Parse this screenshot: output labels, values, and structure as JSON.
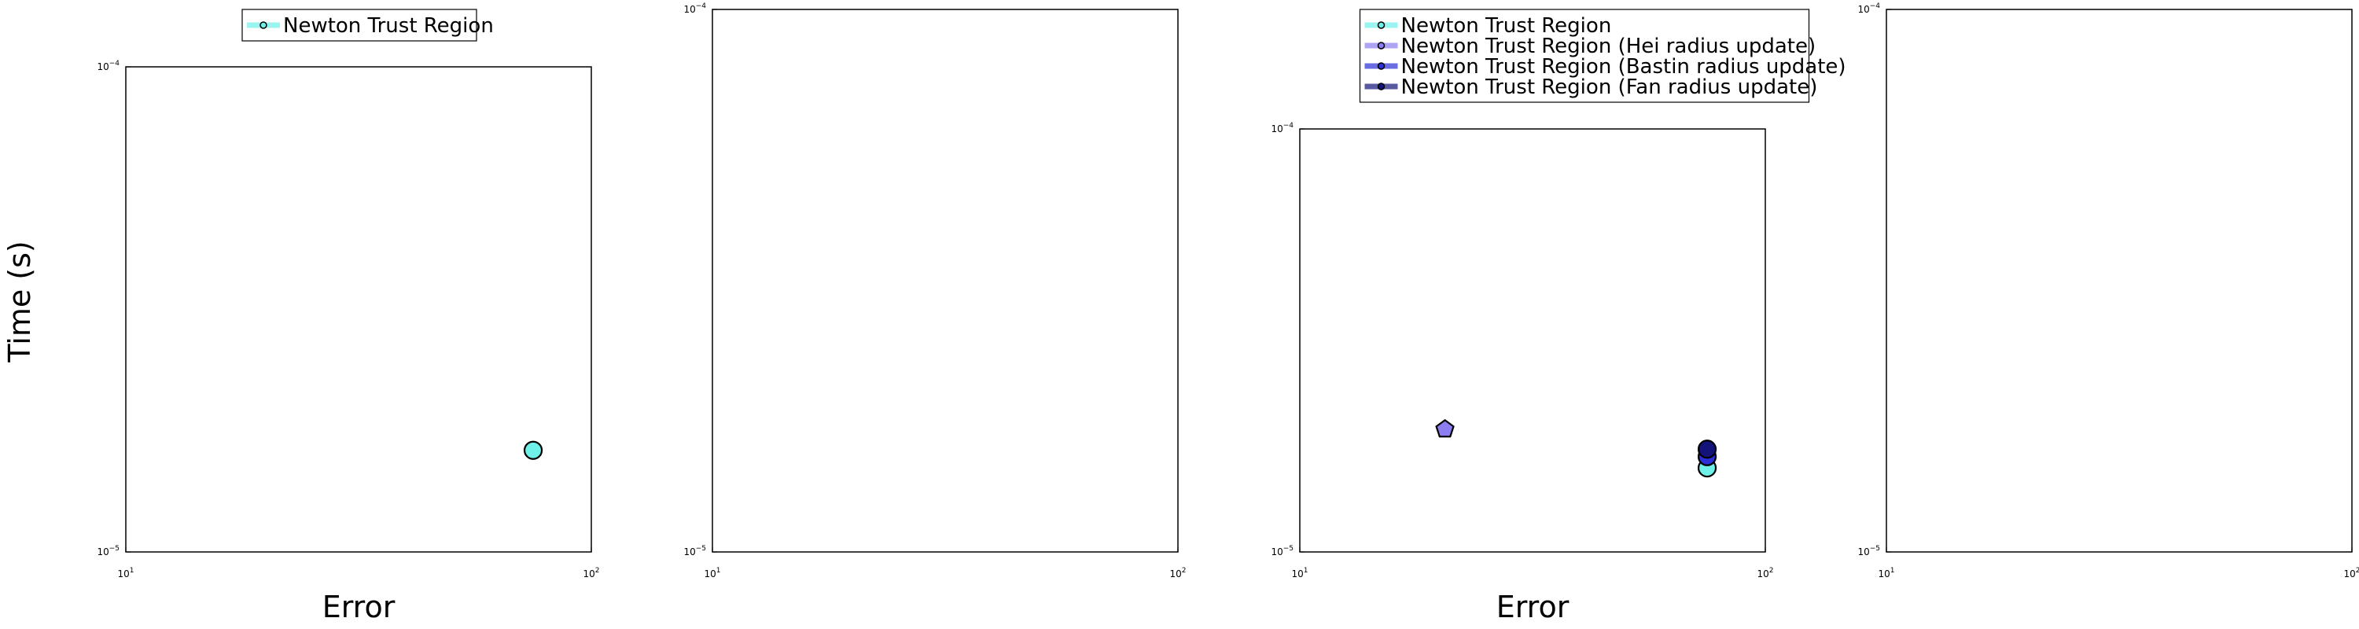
{
  "chart_data": [
    {
      "type": "scatter",
      "xscale": "log",
      "yscale": "log",
      "xlim": [
        10,
        100
      ],
      "ylim": [
        1e-05,
        0.0001
      ],
      "xticks": [
        {
          "base": "10",
          "exp": "1"
        },
        {
          "base": "10",
          "exp": "2"
        }
      ],
      "yticks": [
        {
          "base": "10",
          "exp": "−5"
        },
        {
          "base": "10",
          "exp": "−4"
        }
      ],
      "xlabel": "Error",
      "ylabel": "Time (s)",
      "legend": "top-center",
      "series": [
        {
          "name": "Newton Trust Region",
          "color": "#6ff0e8",
          "marker": "circle",
          "points": [
            {
              "x": 75,
              "y": 1.62e-05
            }
          ]
        }
      ]
    },
    {
      "type": "scatter",
      "xscale": "log",
      "yscale": "log",
      "xlim": [
        10,
        100
      ],
      "ylim": [
        1e-05,
        0.0001
      ],
      "xticks": [
        {
          "base": "10",
          "exp": "1"
        },
        {
          "base": "10",
          "exp": "2"
        }
      ],
      "yticks": [
        {
          "base": "10",
          "exp": "−5"
        },
        {
          "base": "10",
          "exp": "−4"
        }
      ],
      "xlabel": "",
      "ylabel": "",
      "series": []
    },
    {
      "type": "scatter",
      "xscale": "log",
      "yscale": "log",
      "xlim": [
        10,
        100
      ],
      "ylim": [
        1e-05,
        0.0001
      ],
      "xticks": [
        {
          "base": "10",
          "exp": "1"
        },
        {
          "base": "10",
          "exp": "2"
        }
      ],
      "yticks": [
        {
          "base": "10",
          "exp": "−5"
        },
        {
          "base": "10",
          "exp": "−4"
        }
      ],
      "xlabel": "Error",
      "ylabel": "",
      "legend": "top-center",
      "series": [
        {
          "name": "Newton Trust Region",
          "color": "#6ff0e8",
          "marker": "circle",
          "points": [
            {
              "x": 75,
              "y": 1.58e-05
            }
          ]
        },
        {
          "name": "Newton Trust Region (Hei radius update)",
          "color": "#8c7ef0",
          "marker": "pentagon",
          "points": [
            {
              "x": 20.5,
              "y": 1.95e-05
            }
          ]
        },
        {
          "name": "Newton Trust Region (Bastin radius update)",
          "color": "#2b2fd6",
          "marker": "circle",
          "points": [
            {
              "x": 75,
              "y": 1.68e-05
            }
          ]
        },
        {
          "name": "Newton Trust Region (Fan radius update)",
          "color": "#13137a",
          "marker": "circle",
          "points": [
            {
              "x": 75,
              "y": 1.75e-05
            }
          ]
        }
      ]
    },
    {
      "type": "scatter",
      "xscale": "log",
      "yscale": "log",
      "xlim": [
        10,
        100
      ],
      "ylim": [
        1e-05,
        0.0001
      ],
      "xticks": [
        {
          "base": "10",
          "exp": "1"
        },
        {
          "base": "10",
          "exp": "2"
        }
      ],
      "yticks": [
        {
          "base": "10",
          "exp": "−5"
        },
        {
          "base": "10",
          "exp": "−4"
        }
      ],
      "xlabel": "",
      "ylabel": "",
      "series": []
    }
  ]
}
